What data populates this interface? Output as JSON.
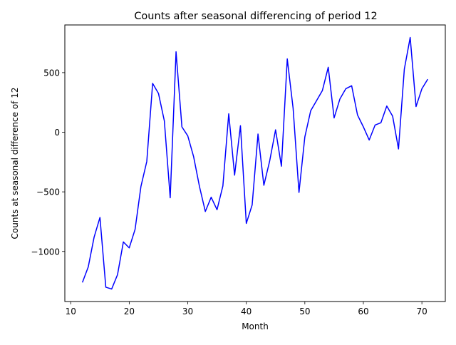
{
  "chart_data": {
    "type": "line",
    "title": "Counts after seasonal differencing of period 12",
    "xlabel": "Month",
    "ylabel": "Counts at seasonal difference of 12",
    "xlim": [
      9,
      74
    ],
    "ylim": [
      -1420,
      900
    ],
    "xticks": [
      10,
      20,
      30,
      40,
      50,
      60,
      70
    ],
    "yticks": [
      -1000,
      -500,
      0,
      500
    ],
    "ytick_labels": [
      "−1000",
      "−500",
      "0",
      "500"
    ],
    "grid": false,
    "series": [
      {
        "color": "#0000ff",
        "x": [
          12,
          13,
          14,
          15,
          16,
          17,
          18,
          19,
          20,
          21,
          22,
          23,
          24,
          25,
          26,
          27,
          28,
          29,
          30,
          31,
          32,
          33,
          34,
          35,
          36,
          37,
          38,
          39,
          40,
          41,
          42,
          43,
          44,
          45,
          46,
          47,
          48,
          49,
          50,
          51,
          52,
          53,
          54,
          55,
          56,
          57,
          58,
          59,
          60,
          61,
          62,
          63,
          64,
          65,
          66,
          67,
          68,
          69,
          70,
          71
        ],
        "y": [
          -1260,
          -1130,
          -880,
          -715,
          -1300,
          -1315,
          -1195,
          -920,
          -970,
          -815,
          -455,
          -245,
          410,
          325,
          95,
          -550,
          675,
          45,
          -30,
          -205,
          -455,
          -665,
          -545,
          -650,
          -450,
          155,
          -360,
          55,
          -765,
          -610,
          -15,
          -445,
          -240,
          20,
          -285,
          615,
          200,
          -505,
          -40,
          180,
          265,
          350,
          545,
          120,
          280,
          365,
          390,
          145,
          45,
          -65,
          60,
          80,
          220,
          135,
          -140,
          530,
          795,
          215,
          365,
          445
        ]
      }
    ]
  }
}
